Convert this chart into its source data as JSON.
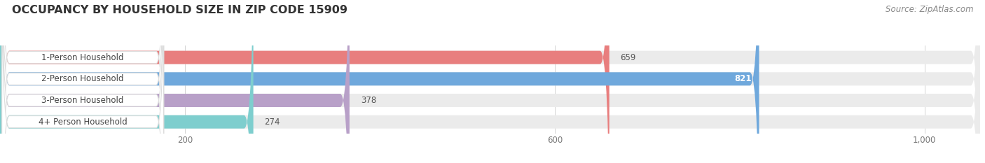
{
  "title": "OCCUPANCY BY HOUSEHOLD SIZE IN ZIP CODE 15909",
  "source": "Source: ZipAtlas.com",
  "categories": [
    "1-Person Household",
    "2-Person Household",
    "3-Person Household",
    "4+ Person Household"
  ],
  "values": [
    659,
    821,
    378,
    274
  ],
  "bar_colors": [
    "#e87e7e",
    "#6fa8dc",
    "#b8a0c8",
    "#7ecece"
  ],
  "bar_bg_color": "#ebebeb",
  "label_bg_color": "#ffffff",
  "xlim_max": 1060,
  "xticks": [
    200,
    600,
    1000
  ],
  "title_fontsize": 11.5,
  "source_fontsize": 8.5,
  "label_fontsize": 8.5,
  "value_fontsize": 8.5,
  "tick_fontsize": 8.5,
  "bar_height": 0.62,
  "figsize": [
    14.06,
    2.33
  ],
  "dpi": 100,
  "fig_bg": "#ffffff",
  "value_inside_index": 1,
  "value_inside_color": "#ffffff",
  "value_outside_color": "#555555"
}
